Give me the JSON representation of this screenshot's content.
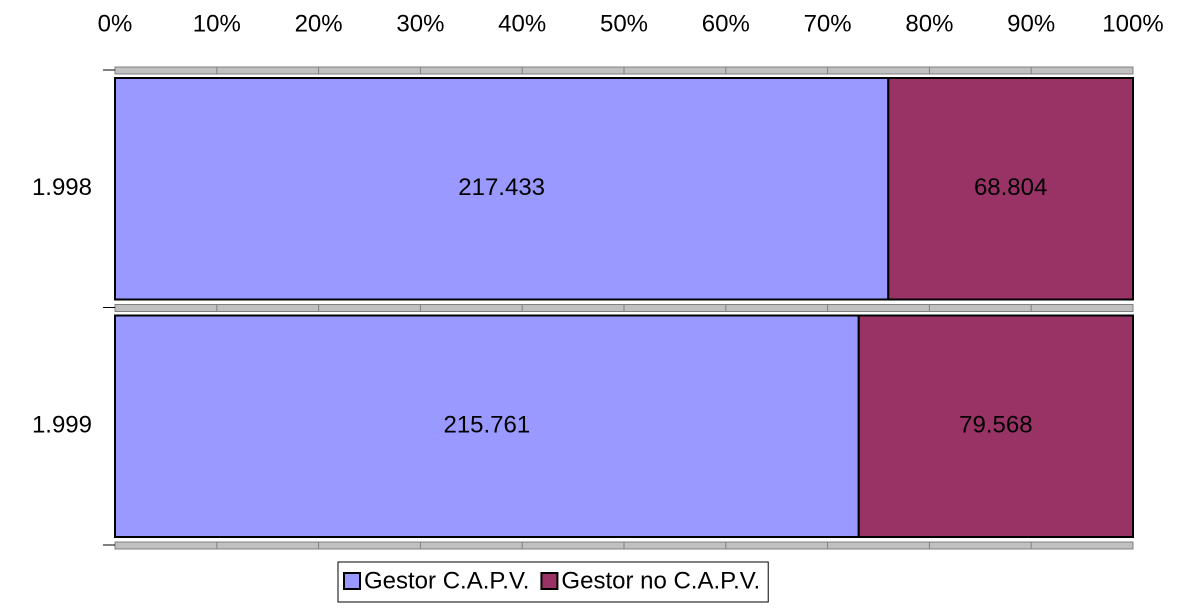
{
  "chart_data": {
    "type": "bar",
    "orientation": "horizontal",
    "stacking": "percent",
    "categories": [
      "1.998",
      "1.999"
    ],
    "series": [
      {
        "name": "Gestor C.A.P.V.",
        "color": "#9999ff",
        "values": [
          217433,
          215761
        ],
        "value_labels": [
          "217.433",
          "215.761"
        ]
      },
      {
        "name": "Gestor no C.A.P.V.",
        "color": "#993366",
        "values": [
          68804,
          79568
        ],
        "value_labels": [
          "68.804",
          "79.568"
        ]
      }
    ],
    "xlim": [
      0,
      100
    ],
    "xticks": [
      {
        "value": 0,
        "label": "0%"
      },
      {
        "value": 10,
        "label": "10%"
      },
      {
        "value": 20,
        "label": "20%"
      },
      {
        "value": 30,
        "label": "30%"
      },
      {
        "value": 40,
        "label": "40%"
      },
      {
        "value": 50,
        "label": "50%"
      },
      {
        "value": 60,
        "label": "60%"
      },
      {
        "value": 70,
        "label": "70%"
      },
      {
        "value": 80,
        "label": "80%"
      },
      {
        "value": 90,
        "label": "90%"
      },
      {
        "value": 100,
        "label": "100%"
      }
    ],
    "legend": "bottom"
  }
}
